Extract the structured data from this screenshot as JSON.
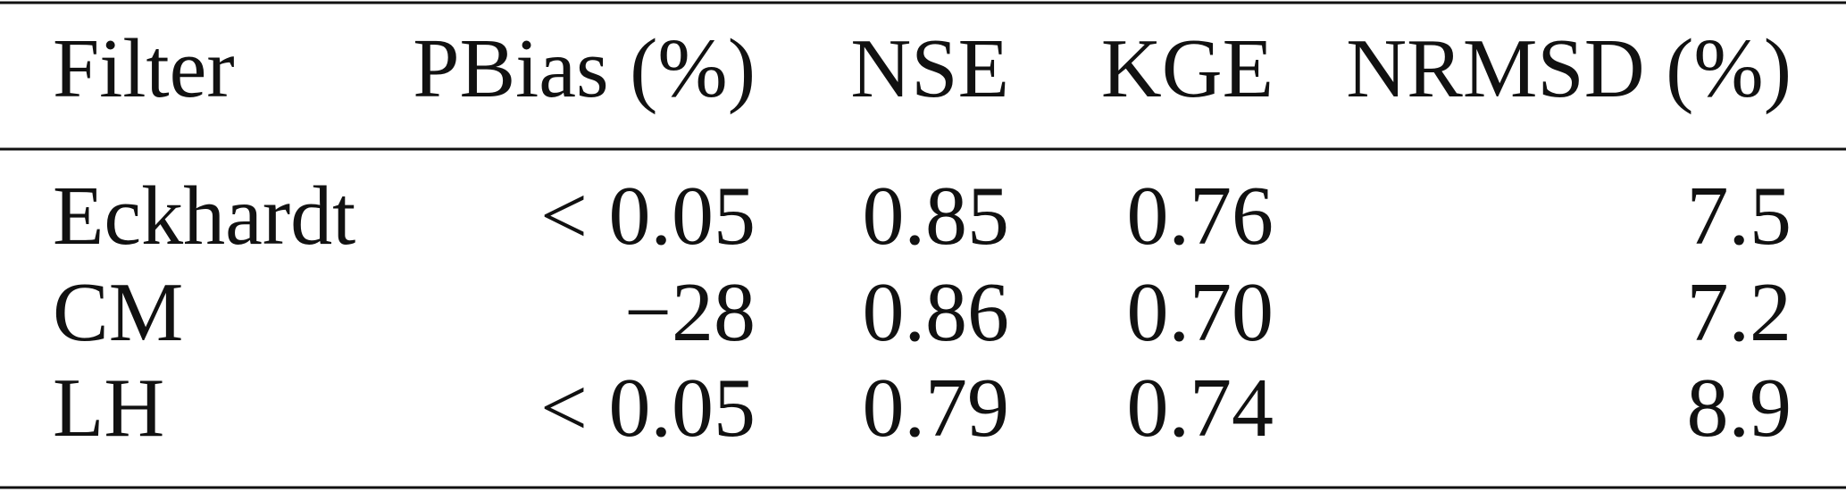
{
  "table": {
    "header": [
      "Filter",
      "PBias (%)",
      "NSE",
      "KGE",
      "NRMSD (%)"
    ],
    "rows": [
      [
        "Eckhardt",
        "< 0.05",
        "0.85",
        "0.76",
        "7.5"
      ],
      [
        "CM",
        "−28",
        "0.86",
        "0.70",
        "7.2"
      ],
      [
        "LH",
        "< 0.05",
        "0.79",
        "0.74",
        "8.9"
      ]
    ]
  }
}
